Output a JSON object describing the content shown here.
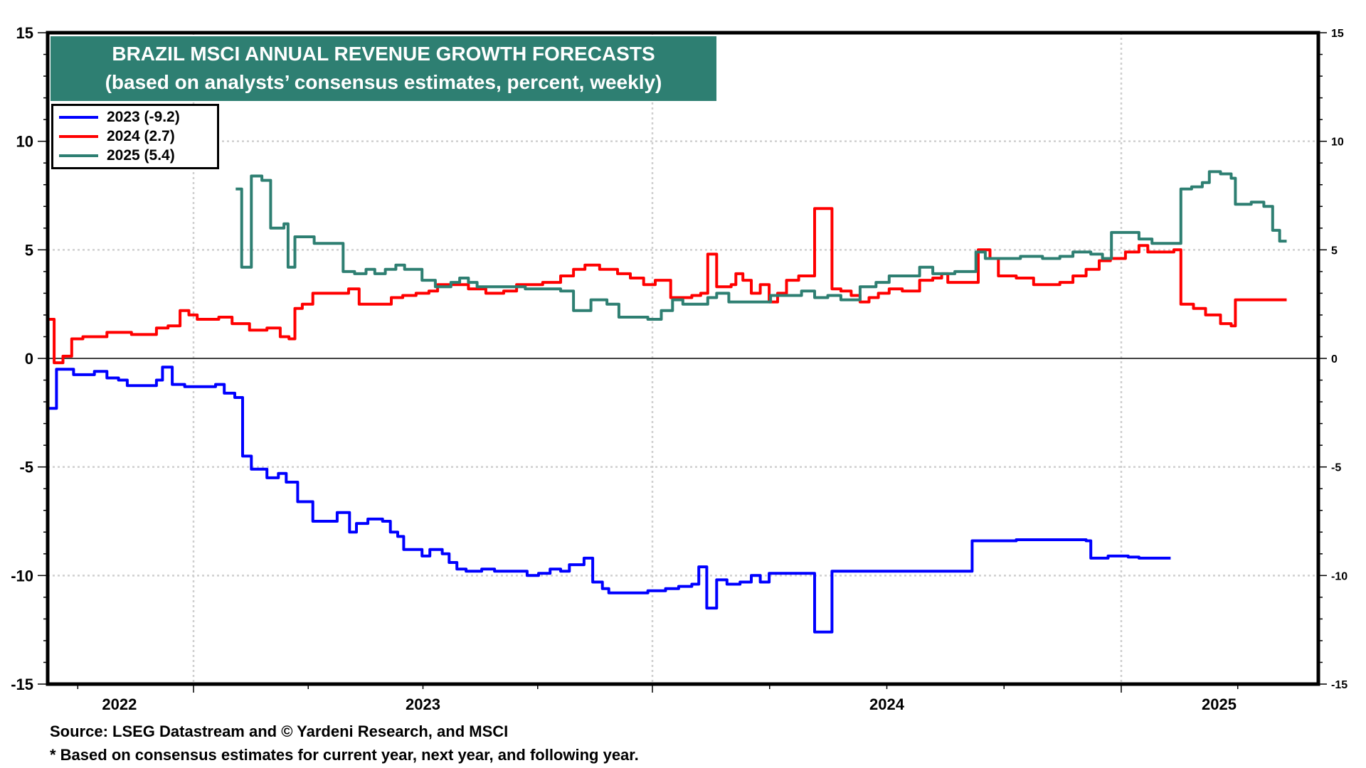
{
  "chart_data": {
    "type": "line",
    "title": "BRAZIL MSCI ANNUAL REVENUE GROWTH FORECASTS",
    "subtitle": "(based on analysts’ consensus estimates, percent, weekly)",
    "xlabel": "",
    "ylabel": "",
    "ylim": [
      -15,
      15
    ],
    "xlim": [
      2022.685,
      2025.423
    ],
    "yticks": [
      15,
      10,
      5,
      0,
      -5,
      -10,
      -15
    ],
    "yticks_right": [
      15,
      10,
      5,
      0,
      -5,
      -10,
      -15
    ],
    "xtick_labels": [
      {
        "label": "2022",
        "x": 2022.84
      },
      {
        "label": "2023",
        "x": 2023.5
      },
      {
        "label": "2024",
        "x": 2024.5
      },
      {
        "label": "2025",
        "x": 2025.21
      }
    ],
    "year_boundaries": [
      2023,
      2024,
      2025
    ],
    "quarter_ticks": [
      2022.75,
      2023.25,
      2023.5,
      2023.75,
      2024.25,
      2024.5,
      2024.75,
      2025.25
    ],
    "grid": true,
    "zero_line": true,
    "legend_position": "top-left",
    "step": true,
    "series": [
      {
        "name": "2023 (-9.2)",
        "color": "#0000ff",
        "points": [
          [
            2022.685,
            -2.3
          ],
          [
            2022.704,
            -0.5
          ],
          [
            2022.741,
            -0.75
          ],
          [
            2022.786,
            -0.6
          ],
          [
            2022.813,
            -0.9
          ],
          [
            2022.838,
            -1.0
          ],
          [
            2022.857,
            -1.25
          ],
          [
            2022.92,
            -1.0
          ],
          [
            2022.933,
            -0.4
          ],
          [
            2022.954,
            -1.2
          ],
          [
            2022.981,
            -1.3
          ],
          [
            2023.048,
            -1.2
          ],
          [
            2023.067,
            -1.6
          ],
          [
            2023.09,
            -1.8
          ],
          [
            2023.107,
            -4.5
          ],
          [
            2023.126,
            -5.1
          ],
          [
            2023.16,
            -5.5
          ],
          [
            2023.185,
            -5.3
          ],
          [
            2023.202,
            -5.7
          ],
          [
            2023.227,
            -6.6
          ],
          [
            2023.26,
            -7.5
          ],
          [
            2023.313,
            -7.1
          ],
          [
            2023.34,
            -8.0
          ],
          [
            2023.355,
            -7.6
          ],
          [
            2023.38,
            -7.4
          ],
          [
            2023.412,
            -7.5
          ],
          [
            2023.429,
            -8.0
          ],
          [
            2023.445,
            -8.2
          ],
          [
            2023.458,
            -8.8
          ],
          [
            2023.481,
            -8.8
          ],
          [
            2023.498,
            -9.1
          ],
          [
            2023.515,
            -8.8
          ],
          [
            2023.542,
            -9.0
          ],
          [
            2023.557,
            -9.4
          ],
          [
            2023.574,
            -9.7
          ],
          [
            2023.594,
            -9.8
          ],
          [
            2023.628,
            -9.7
          ],
          [
            2023.656,
            -9.8
          ],
          [
            2023.695,
            -9.8
          ],
          [
            2023.727,
            -10.0
          ],
          [
            2023.752,
            -9.9
          ],
          [
            2023.777,
            -9.7
          ],
          [
            2023.8,
            -9.8
          ],
          [
            2023.819,
            -9.5
          ],
          [
            2023.851,
            -9.2
          ],
          [
            2023.87,
            -10.3
          ],
          [
            2023.891,
            -10.6
          ],
          [
            2023.905,
            -10.8
          ],
          [
            2023.943,
            -10.8
          ],
          [
            2023.99,
            -10.7
          ],
          [
            2024.028,
            -10.6
          ],
          [
            2024.056,
            -10.5
          ],
          [
            2024.084,
            -10.4
          ],
          [
            2024.099,
            -9.6
          ],
          [
            2024.116,
            -11.5
          ],
          [
            2024.137,
            -10.2
          ],
          [
            2024.159,
            -10.4
          ],
          [
            2024.187,
            -10.3
          ],
          [
            2024.211,
            -10.0
          ],
          [
            2024.23,
            -10.3
          ],
          [
            2024.249,
            -9.9
          ],
          [
            2024.29,
            -9.9
          ],
          [
            2024.346,
            -12.6
          ],
          [
            2024.383,
            -9.8
          ],
          [
            2024.533,
            -9.8
          ],
          [
            2024.682,
            -8.4
          ],
          [
            2024.729,
            -8.4
          ],
          [
            2024.776,
            -8.35
          ],
          [
            2024.925,
            -8.4
          ],
          [
            2024.935,
            -9.2
          ],
          [
            2024.972,
            -9.1
          ],
          [
            2025.015,
            -9.15
          ],
          [
            2025.038,
            -9.2
          ],
          [
            2025.106,
            -9.2
          ]
        ]
      },
      {
        "name": "2024 (2.7)",
        "color": "#ff0000",
        "points": [
          [
            2022.685,
            1.8
          ],
          [
            2022.699,
            -0.2
          ],
          [
            2022.718,
            0.1
          ],
          [
            2022.737,
            0.9
          ],
          [
            2022.761,
            1.0
          ],
          [
            2022.813,
            1.2
          ],
          [
            2022.866,
            1.1
          ],
          [
            2022.895,
            1.1
          ],
          [
            2022.92,
            1.4
          ],
          [
            2022.945,
            1.5
          ],
          [
            2022.971,
            2.2
          ],
          [
            2022.99,
            2.0
          ],
          [
            2023.008,
            1.8
          ],
          [
            2023.055,
            1.9
          ],
          [
            2023.084,
            1.6
          ],
          [
            2023.122,
            1.3
          ],
          [
            2023.16,
            1.4
          ],
          [
            2023.189,
            1.0
          ],
          [
            2023.208,
            0.9
          ],
          [
            2023.221,
            2.3
          ],
          [
            2023.237,
            2.5
          ],
          [
            2023.26,
            3.0
          ],
          [
            2023.323,
            3.0
          ],
          [
            2023.338,
            3.2
          ],
          [
            2023.361,
            2.5
          ],
          [
            2023.418,
            2.5
          ],
          [
            2023.431,
            2.8
          ],
          [
            2023.456,
            2.9
          ],
          [
            2023.485,
            3.0
          ],
          [
            2023.513,
            3.1
          ],
          [
            2023.532,
            3.4
          ],
          [
            2023.561,
            3.4
          ],
          [
            2023.599,
            3.2
          ],
          [
            2023.637,
            3.0
          ],
          [
            2023.676,
            3.1
          ],
          [
            2023.704,
            3.4
          ],
          [
            2023.761,
            3.5
          ],
          [
            2023.8,
            3.8
          ],
          [
            2023.828,
            4.1
          ],
          [
            2023.853,
            4.3
          ],
          [
            2023.885,
            4.1
          ],
          [
            2023.924,
            3.9
          ],
          [
            2023.952,
            3.7
          ],
          [
            2023.981,
            3.4
          ],
          [
            2024.006,
            3.6
          ],
          [
            2024.039,
            2.8
          ],
          [
            2024.084,
            2.9
          ],
          [
            2024.103,
            3.0
          ],
          [
            2024.118,
            4.8
          ],
          [
            2024.137,
            3.3
          ],
          [
            2024.168,
            3.4
          ],
          [
            2024.178,
            3.9
          ],
          [
            2024.193,
            3.6
          ],
          [
            2024.211,
            3.0
          ],
          [
            2024.23,
            3.4
          ],
          [
            2024.249,
            2.6
          ],
          [
            2024.267,
            3.0
          ],
          [
            2024.286,
            3.6
          ],
          [
            2024.312,
            3.8
          ],
          [
            2024.346,
            6.9
          ],
          [
            2024.383,
            3.2
          ],
          [
            2024.402,
            3.1
          ],
          [
            2024.424,
            2.9
          ],
          [
            2024.443,
            2.6
          ],
          [
            2024.462,
            2.8
          ],
          [
            2024.482,
            3.0
          ],
          [
            2024.505,
            3.2
          ],
          [
            2024.533,
            3.1
          ],
          [
            2024.57,
            3.6
          ],
          [
            2024.598,
            3.7
          ],
          [
            2024.617,
            3.9
          ],
          [
            2024.63,
            3.5
          ],
          [
            2024.682,
            3.5
          ],
          [
            2024.695,
            5.0
          ],
          [
            2024.72,
            4.6
          ],
          [
            2024.738,
            3.8
          ],
          [
            2024.776,
            3.7
          ],
          [
            2024.813,
            3.4
          ],
          [
            2024.869,
            3.5
          ],
          [
            2024.897,
            3.8
          ],
          [
            2024.925,
            4.1
          ],
          [
            2024.953,
            4.5
          ],
          [
            2024.977,
            4.6
          ],
          [
            2025.009,
            4.9
          ],
          [
            2025.038,
            5.2
          ],
          [
            2025.057,
            4.9
          ],
          [
            2025.113,
            5.0
          ],
          [
            2025.128,
            2.5
          ],
          [
            2025.155,
            2.3
          ],
          [
            2025.181,
            2.0
          ],
          [
            2025.213,
            1.6
          ],
          [
            2025.236,
            1.5
          ],
          [
            2025.245,
            2.7
          ],
          [
            2025.355,
            2.7
          ]
        ]
      },
      {
        "name": "2025 (5.4)",
        "color": "#2e7f72",
        "points": [
          [
            2023.092,
            7.8
          ],
          [
            2023.105,
            4.2
          ],
          [
            2023.126,
            8.4
          ],
          [
            2023.149,
            8.2
          ],
          [
            2023.168,
            6.0
          ],
          [
            2023.197,
            6.2
          ],
          [
            2023.206,
            4.2
          ],
          [
            2023.221,
            5.6
          ],
          [
            2023.263,
            5.3
          ],
          [
            2023.282,
            5.3
          ],
          [
            2023.326,
            4.0
          ],
          [
            2023.351,
            3.9
          ],
          [
            2023.376,
            4.1
          ],
          [
            2023.395,
            3.9
          ],
          [
            2023.418,
            4.1
          ],
          [
            2023.441,
            4.3
          ],
          [
            2023.46,
            4.1
          ],
          [
            2023.498,
            3.6
          ],
          [
            2023.527,
            3.3
          ],
          [
            2023.561,
            3.5
          ],
          [
            2023.58,
            3.7
          ],
          [
            2023.599,
            3.5
          ],
          [
            2023.618,
            3.3
          ],
          [
            2023.666,
            3.3
          ],
          [
            2023.723,
            3.2
          ],
          [
            2023.8,
            3.1
          ],
          [
            2023.828,
            2.2
          ],
          [
            2023.853,
            2.2
          ],
          [
            2023.866,
            2.7
          ],
          [
            2023.901,
            2.5
          ],
          [
            2023.927,
            1.9
          ],
          [
            2023.99,
            1.8
          ],
          [
            2024.019,
            2.2
          ],
          [
            2024.043,
            2.7
          ],
          [
            2024.065,
            2.5
          ],
          [
            2024.093,
            2.5
          ],
          [
            2024.118,
            2.8
          ],
          [
            2024.137,
            3.0
          ],
          [
            2024.163,
            2.6
          ],
          [
            2024.206,
            2.6
          ],
          [
            2024.252,
            2.9
          ],
          [
            2024.28,
            2.9
          ],
          [
            2024.318,
            3.1
          ],
          [
            2024.346,
            2.8
          ],
          [
            2024.374,
            2.9
          ],
          [
            2024.402,
            2.7
          ],
          [
            2024.443,
            3.3
          ],
          [
            2024.477,
            3.5
          ],
          [
            2024.505,
            3.8
          ],
          [
            2024.57,
            4.2
          ],
          [
            2024.598,
            3.9
          ],
          [
            2024.645,
            4.0
          ],
          [
            2024.682,
            4.0
          ],
          [
            2024.69,
            4.9
          ],
          [
            2024.71,
            4.6
          ],
          [
            2024.785,
            4.7
          ],
          [
            2024.832,
            4.6
          ],
          [
            2024.869,
            4.7
          ],
          [
            2024.897,
            4.9
          ],
          [
            2024.935,
            4.8
          ],
          [
            2024.96,
            4.6
          ],
          [
            2024.979,
            5.8
          ],
          [
            2025.004,
            5.8
          ],
          [
            2025.038,
            5.5
          ],
          [
            2025.066,
            5.3
          ],
          [
            2025.104,
            5.3
          ],
          [
            2025.128,
            7.8
          ],
          [
            2025.151,
            7.9
          ],
          [
            2025.174,
            8.1
          ],
          [
            2025.189,
            8.6
          ],
          [
            2025.213,
            8.5
          ],
          [
            2025.236,
            8.3
          ],
          [
            2025.245,
            7.1
          ],
          [
            2025.279,
            7.2
          ],
          [
            2025.306,
            7.0
          ],
          [
            2025.325,
            5.9
          ],
          [
            2025.34,
            5.4
          ],
          [
            2025.355,
            5.4
          ]
        ]
      }
    ]
  },
  "title_box": {
    "line1": "BRAZIL MSCI ANNUAL REVENUE GROWTH FORECASTS",
    "line2": "(based on analysts’ consensus estimates, percent, weekly)"
  },
  "legend": {
    "items": [
      {
        "label": "2023 (-9.2)",
        "color": "#0000ff"
      },
      {
        "label": "2024 (2.7)",
        "color": "#ff0000"
      },
      {
        "label": "2025 (5.4)",
        "color": "#2e7f72"
      }
    ]
  },
  "footer": {
    "source": "Source: LSEG Datastream and © Yardeni Research, and MSCI",
    "note": "* Based on consensus estimates for current year, next year, and following year."
  }
}
